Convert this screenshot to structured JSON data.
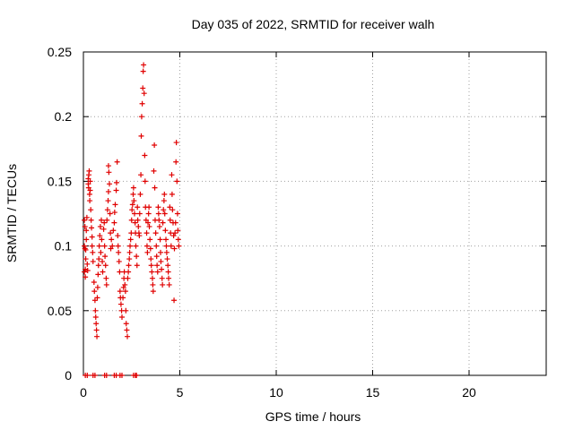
{
  "chart_data": {
    "type": "scatter",
    "title": "Day 035 of 2022, SRMTID for receiver walh",
    "xlabel": "GPS time / hours",
    "ylabel": "SRMTID / TECUs",
    "xlim": [
      0,
      24
    ],
    "ylim": [
      0,
      0.25
    ],
    "xticks": [
      0,
      5,
      10,
      15,
      20
    ],
    "yticks": [
      0,
      0.05,
      0.1,
      0.15,
      0.2,
      0.25
    ],
    "ytick_labels": [
      "0",
      "0.05",
      "0.1",
      "0.15",
      "0.2",
      "0.25"
    ],
    "grid": true,
    "marker": "+",
    "marker_color": "#e00000",
    "series": [
      {
        "points": [
          [
            0.05,
            0.12
          ],
          [
            0.05,
            0.1
          ],
          [
            0.05,
            0.08
          ],
          [
            0.08,
            0.115
          ],
          [
            0.08,
            0.098
          ],
          [
            0.1,
            0.082
          ],
          [
            0.1,
            0.076
          ],
          [
            0.12,
            0.09
          ],
          [
            0.12,
            0.097
          ],
          [
            0.15,
            0.105
          ],
          [
            0.15,
            0.112
          ],
          [
            0.18,
            0.122
          ],
          [
            0.2,
            0.086
          ],
          [
            0.22,
            0.081
          ],
          [
            0.25,
            0.148
          ],
          [
            0.25,
            0.152
          ],
          [
            0.27,
            0.145
          ],
          [
            0.28,
            0.155
          ],
          [
            0.3,
            0.158
          ],
          [
            0.32,
            0.14
          ],
          [
            0.33,
            0.135
          ],
          [
            0.35,
            0.15
          ],
          [
            0.35,
            0.143
          ],
          [
            0.38,
            0.128
          ],
          [
            0.4,
            0.12
          ],
          [
            0.42,
            0.114
          ],
          [
            0.45,
            0.107
          ],
          [
            0.45,
            0.1
          ],
          [
            0.48,
            0.095
          ],
          [
            0.5,
            0.088
          ],
          [
            0.55,
            0.072
          ],
          [
            0.57,
            0.065
          ],
          [
            0.6,
            0.058
          ],
          [
            0.62,
            0.05
          ],
          [
            0.64,
            0.045
          ],
          [
            0.66,
            0.04
          ],
          [
            0.68,
            0.035
          ],
          [
            0.7,
            0.03
          ],
          [
            0.72,
            0.06
          ],
          [
            0.74,
            0.068
          ],
          [
            0.76,
            0.078
          ],
          [
            0.78,
            0.085
          ],
          [
            0.8,
            0.09
          ],
          [
            0.82,
            0.1
          ],
          [
            0.85,
            0.108
          ],
          [
            0.88,
            0.115
          ],
          [
            0.9,
            0.095
          ],
          [
            0.93,
            0.12
          ],
          [
            0.95,
            0.105
          ],
          [
            0.98,
            0.088
          ],
          [
            1.0,
            0.08
          ],
          [
            1.05,
            0.113
          ],
          [
            1.08,
            0.118
          ],
          [
            1.1,
            0.1
          ],
          [
            1.12,
            0.092
          ],
          [
            1.15,
            0.085
          ],
          [
            1.18,
            0.075
          ],
          [
            1.2,
            0.07
          ],
          [
            1.22,
            0.12
          ],
          [
            1.25,
            0.128
          ],
          [
            1.28,
            0.135
          ],
          [
            1.3,
            0.142
          ],
          [
            1.3,
            0.162
          ],
          [
            1.32,
            0.157
          ],
          [
            1.35,
            0.148
          ],
          [
            1.38,
            0.125
          ],
          [
            1.4,
            0.11
          ],
          [
            1.42,
            0.098
          ],
          [
            1.45,
            0.105
          ],
          [
            1.5,
            0.1
          ],
          [
            1.55,
            0.112
          ],
          [
            1.6,
            0.118
          ],
          [
            1.62,
            0.126
          ],
          [
            1.65,
            0.132
          ],
          [
            1.7,
            0.143
          ],
          [
            1.72,
            0.149
          ],
          [
            1.75,
            0.165
          ],
          [
            1.78,
            0.108
          ],
          [
            1.8,
            0.1
          ],
          [
            1.82,
            0.095
          ],
          [
            1.85,
            0.088
          ],
          [
            1.88,
            0.08
          ],
          [
            1.9,
            0.065
          ],
          [
            1.92,
            0.06
          ],
          [
            1.95,
            0.055
          ],
          [
            1.98,
            0.05
          ],
          [
            2.0,
            0.045
          ],
          [
            2.05,
            0.06
          ],
          [
            2.08,
            0.068
          ],
          [
            2.1,
            0.075
          ],
          [
            2.12,
            0.08
          ],
          [
            2.15,
            0.07
          ],
          [
            2.18,
            0.065
          ],
          [
            2.2,
            0.05
          ],
          [
            2.22,
            0.04
          ],
          [
            2.25,
            0.035
          ],
          [
            2.28,
            0.03
          ],
          [
            2.3,
            0.075
          ],
          [
            2.33,
            0.08
          ],
          [
            2.35,
            0.085
          ],
          [
            2.38,
            0.09
          ],
          [
            2.4,
            0.095
          ],
          [
            2.42,
            0.1
          ],
          [
            2.45,
            0.105
          ],
          [
            2.48,
            0.11
          ],
          [
            2.5,
            0.12
          ],
          [
            2.52,
            0.128
          ],
          [
            2.55,
            0.132
          ],
          [
            2.58,
            0.14
          ],
          [
            2.6,
            0.145
          ],
          [
            2.62,
            0.135
          ],
          [
            2.65,
            0.125
          ],
          [
            2.68,
            0.118
          ],
          [
            2.7,
            0.11
          ],
          [
            2.72,
            0.1
          ],
          [
            2.75,
            0.092
          ],
          [
            2.78,
            0.085
          ],
          [
            2.8,
            0.13
          ],
          [
            2.82,
            0.12
          ],
          [
            2.85,
            0.115
          ],
          [
            2.88,
            0.11
          ],
          [
            2.9,
            0.108
          ],
          [
            2.92,
            0.125
          ],
          [
            2.95,
            0.14
          ],
          [
            2.98,
            0.155
          ],
          [
            3.0,
            0.185
          ],
          [
            3.02,
            0.2
          ],
          [
            3.05,
            0.21
          ],
          [
            3.08,
            0.222
          ],
          [
            3.1,
            0.235
          ],
          [
            3.12,
            0.24
          ],
          [
            3.15,
            0.218
          ],
          [
            3.18,
            0.17
          ],
          [
            3.2,
            0.15
          ],
          [
            3.22,
            0.13
          ],
          [
            3.25,
            0.12
          ],
          [
            3.28,
            0.11
          ],
          [
            3.3,
            0.1
          ],
          [
            3.32,
            0.095
          ],
          [
            3.35,
            0.118
          ],
          [
            3.38,
            0.125
          ],
          [
            3.4,
            0.13
          ],
          [
            3.42,
            0.115
          ],
          [
            3.45,
            0.105
          ],
          [
            3.48,
            0.098
          ],
          [
            3.5,
            0.09
          ],
          [
            3.52,
            0.085
          ],
          [
            3.55,
            0.08
          ],
          [
            3.58,
            0.075
          ],
          [
            3.6,
            0.07
          ],
          [
            3.62,
            0.065
          ],
          [
            3.65,
            0.158
          ],
          [
            3.68,
            0.178
          ],
          [
            3.7,
            0.145
          ],
          [
            3.72,
            0.12
          ],
          [
            3.75,
            0.11
          ],
          [
            3.78,
            0.1
          ],
          [
            3.8,
            0.092
          ],
          [
            3.82,
            0.085
          ],
          [
            3.85,
            0.08
          ],
          [
            3.88,
            0.13
          ],
          [
            3.9,
            0.125
          ],
          [
            3.92,
            0.12
          ],
          [
            3.95,
            0.115
          ],
          [
            3.98,
            0.105
          ],
          [
            4.0,
            0.095
          ],
          [
            4.02,
            0.088
          ],
          [
            4.05,
            0.082
          ],
          [
            4.08,
            0.075
          ],
          [
            4.1,
            0.07
          ],
          [
            4.12,
            0.118
          ],
          [
            4.15,
            0.128
          ],
          [
            4.18,
            0.135
          ],
          [
            4.2,
            0.14
          ],
          [
            4.22,
            0.125
          ],
          [
            4.25,
            0.112
          ],
          [
            4.28,
            0.105
          ],
          [
            4.3,
            0.1
          ],
          [
            4.32,
            0.095
          ],
          [
            4.35,
            0.09
          ],
          [
            4.38,
            0.085
          ],
          [
            4.4,
            0.08
          ],
          [
            4.42,
            0.075
          ],
          [
            4.45,
            0.07
          ],
          [
            4.48,
            0.13
          ],
          [
            4.5,
            0.12
          ],
          [
            4.52,
            0.11
          ],
          [
            4.55,
            0.1
          ],
          [
            4.58,
            0.155
          ],
          [
            4.6,
            0.14
          ],
          [
            4.62,
            0.128
          ],
          [
            4.65,
            0.118
          ],
          [
            4.68,
            0.108
          ],
          [
            4.7,
            0.058
          ],
          [
            4.72,
            0.098
          ],
          [
            4.75,
            0.11
          ],
          [
            4.78,
            0.118
          ],
          [
            4.8,
            0.165
          ],
          [
            4.82,
            0.18
          ],
          [
            4.85,
            0.15
          ],
          [
            4.88,
            0.125
          ],
          [
            4.9,
            0.112
          ],
          [
            4.92,
            0.105
          ],
          [
            4.95,
            0.1
          ],
          [
            0.1,
            0.0
          ],
          [
            0.2,
            0.0
          ],
          [
            0.5,
            0.0
          ],
          [
            0.6,
            0.0
          ],
          [
            1.1,
            0.0
          ],
          [
            1.2,
            0.0
          ],
          [
            1.6,
            0.0
          ],
          [
            1.7,
            0.0
          ],
          [
            1.9,
            0.0
          ],
          [
            2.0,
            0.0
          ],
          [
            2.6,
            0.0
          ],
          [
            2.7,
            0.0
          ],
          [
            2.75,
            0.0
          ]
        ]
      }
    ]
  }
}
